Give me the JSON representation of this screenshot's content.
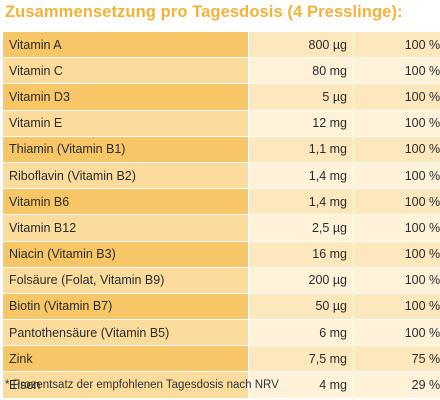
{
  "title": "Zusammensetzung pro Tagesdosis (4 Presslinge):",
  "rows": [
    {
      "name": "Vitamin A",
      "amount": "800 µg",
      "percent": "100 %*"
    },
    {
      "name": "Vitamin C",
      "amount": "80 mg",
      "percent": "100 %*"
    },
    {
      "name": "Vitamin D3",
      "amount": "5 µg",
      "percent": "100 %*"
    },
    {
      "name": "Vitamin E",
      "amount": "12 mg",
      "percent": "100 %*"
    },
    {
      "name": "Thiamin (Vitamin B1)",
      "amount": "1,1 mg",
      "percent": "100 %*"
    },
    {
      "name": "Riboflavin (Vitamin B2)",
      "amount": "1,4 mg",
      "percent": "100 %*"
    },
    {
      "name": "Vitamin B6",
      "amount": "1,4 mg",
      "percent": "100 %*"
    },
    {
      "name": "Vitamin B12",
      "amount": "2,5 µg",
      "percent": "100 %*"
    },
    {
      "name": "Niacin (Vitamin B3)",
      "amount": "16 mg",
      "percent": "100 %*"
    },
    {
      "name": "Folsäure (Folat, Vitamin B9)",
      "amount": "200 µg",
      "percent": "100 %*"
    },
    {
      "name": "Biotin (Vitamin B7)",
      "amount": "50 µg",
      "percent": "100 %*"
    },
    {
      "name": "Pantothensäure (Vitamin B5)",
      "amount": "6 mg",
      "percent": "100 %*"
    },
    {
      "name": "Zink",
      "amount": "7,5 mg",
      "percent": "75 %*"
    },
    {
      "name": "Eisen",
      "amount": "4 mg",
      "percent": "29 %*"
    }
  ],
  "footnote": "* Prozentsatz der empfohlenen Tagesdosis nach NRV",
  "colors": {
    "title": "#f4b23a",
    "name_col_dark": "#f6c667",
    "name_col_light": "#fbdc9d",
    "value_col_dark": "#fde7bd",
    "value_col_light": "#fff2d9"
  }
}
